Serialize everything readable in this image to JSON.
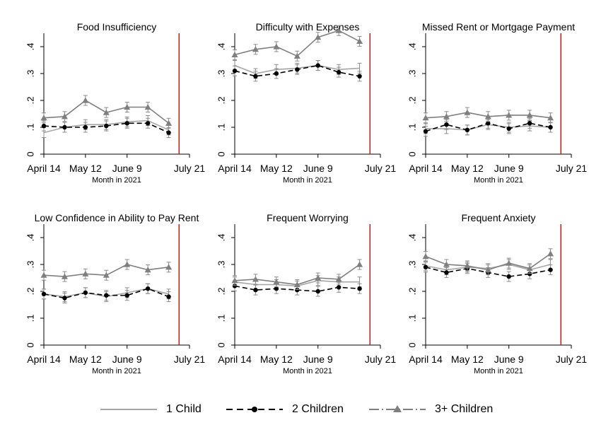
{
  "chart_data": [
    {
      "type": "line",
      "title": "Food Insufficiency",
      "xlabel": "Month in 2021",
      "x_ticks": [
        "April 14",
        "May 12",
        "June 9",
        "July 21"
      ],
      "y_ticks": [
        "0",
        ".1",
        ".2",
        ".3",
        ".4"
      ],
      "ylim": [
        0,
        0.45
      ],
      "policy_line_week": 6.5,
      "series": [
        {
          "name": "1 Child",
          "values": [
            0.08,
            0.1,
            0.11,
            0.11,
            0.12,
            0.125,
            0.09
          ]
        },
        {
          "name": "2 Children",
          "values": [
            0.105,
            0.1,
            0.1,
            0.105,
            0.115,
            0.115,
            0.08
          ]
        },
        {
          "name": "3+ Children",
          "values": [
            0.135,
            0.14,
            0.2,
            0.155,
            0.175,
            0.175,
            0.115
          ]
        }
      ]
    },
    {
      "type": "line",
      "title": "Difficulty with Expenses",
      "xlabel": "Month in 2021",
      "x_ticks": [
        "April 14",
        "May 12",
        "June 9",
        "July 21"
      ],
      "y_ticks": [
        "0",
        ".1",
        ".2",
        ".3",
        ".4"
      ],
      "ylim": [
        0,
        0.45
      ],
      "policy_line_week": 6.5,
      "series": [
        {
          "name": "1 Child",
          "values": [
            0.33,
            0.3,
            0.315,
            0.32,
            0.33,
            0.315,
            0.32
          ]
        },
        {
          "name": "2 Children",
          "values": [
            0.31,
            0.29,
            0.3,
            0.315,
            0.33,
            0.305,
            0.29
          ]
        },
        {
          "name": "3+ Children",
          "values": [
            0.37,
            0.39,
            0.4,
            0.365,
            0.435,
            0.46,
            0.42
          ]
        }
      ]
    },
    {
      "type": "line",
      "title": "Missed Rent or Mortgage Payment",
      "xlabel": "Month in 2021",
      "x_ticks": [
        "April 14",
        "May 12",
        "June 9",
        "July 21"
      ],
      "y_ticks": [
        "0",
        ".1",
        ".2",
        ".3",
        ".4"
      ],
      "ylim": [
        0,
        0.45
      ],
      "policy_line_week": 6.5,
      "series": [
        {
          "name": "1 Child",
          "values": [
            0.095,
            0.095,
            0.09,
            0.11,
            0.1,
            0.105,
            0.1
          ]
        },
        {
          "name": "2 Children",
          "values": [
            0.085,
            0.11,
            0.09,
            0.115,
            0.095,
            0.115,
            0.1
          ]
        },
        {
          "name": "3+ Children",
          "values": [
            0.135,
            0.14,
            0.155,
            0.14,
            0.145,
            0.145,
            0.135
          ]
        }
      ]
    },
    {
      "type": "line",
      "title": "Low Confidence in Ability to Pay Rent",
      "xlabel": "Month in 2021",
      "x_ticks": [
        "April 14",
        "May 12",
        "June 9",
        "July 21"
      ],
      "y_ticks": [
        "0",
        ".1",
        ".2",
        ".3",
        ".4"
      ],
      "ylim": [
        0,
        0.45
      ],
      "policy_line_week": 6.5,
      "series": [
        {
          "name": "1 Child",
          "values": [
            0.19,
            0.18,
            0.195,
            0.18,
            0.195,
            0.21,
            0.19
          ]
        },
        {
          "name": "2 Children",
          "values": [
            0.19,
            0.175,
            0.195,
            0.185,
            0.185,
            0.21,
            0.18
          ]
        },
        {
          "name": "3+ Children",
          "values": [
            0.26,
            0.255,
            0.265,
            0.26,
            0.3,
            0.28,
            0.29
          ]
        }
      ]
    },
    {
      "type": "line",
      "title": "Frequent Worrying",
      "xlabel": "Month in 2021",
      "x_ticks": [
        "April 14",
        "May 12",
        "June 9",
        "July 21"
      ],
      "y_ticks": [
        "0",
        ".1",
        ".2",
        ".3",
        ".4"
      ],
      "ylim": [
        0,
        0.45
      ],
      "policy_line_week": 6.5,
      "series": [
        {
          "name": "1 Child",
          "values": [
            0.235,
            0.225,
            0.225,
            0.22,
            0.24,
            0.235,
            0.235
          ]
        },
        {
          "name": "2 Children",
          "values": [
            0.22,
            0.205,
            0.21,
            0.205,
            0.2,
            0.215,
            0.21
          ]
        },
        {
          "name": "3+ Children",
          "values": [
            0.24,
            0.245,
            0.235,
            0.225,
            0.25,
            0.245,
            0.3
          ]
        }
      ]
    },
    {
      "type": "line",
      "title": "Frequent Anxiety",
      "xlabel": "Month in 2021",
      "x_ticks": [
        "April 14",
        "May 12",
        "June 9",
        "July 21"
      ],
      "y_ticks": [
        "0",
        ".1",
        ".2",
        ".3",
        ".4"
      ],
      "ylim": [
        0,
        0.45
      ],
      "policy_line_week": 6.5,
      "series": [
        {
          "name": "1 Child",
          "values": [
            0.295,
            0.28,
            0.29,
            0.285,
            0.3,
            0.28,
            0.3
          ]
        },
        {
          "name": "2 Children",
          "values": [
            0.29,
            0.27,
            0.285,
            0.27,
            0.255,
            0.265,
            0.28
          ]
        },
        {
          "name": "3+ Children",
          "values": [
            0.33,
            0.3,
            0.295,
            0.28,
            0.305,
            0.285,
            0.34
          ]
        }
      ]
    }
  ],
  "x_tick_weeks": [
    0,
    2,
    4,
    7
  ],
  "week_count": 7,
  "legend": [
    {
      "label": "1 Child"
    },
    {
      "label": "2 Children"
    },
    {
      "label": "3+ Children"
    }
  ],
  "colors": {
    "one_child": "#a6a6a6",
    "two_children": "#000000",
    "three_plus": "#7f7f7f",
    "ci": "#8c8c8c",
    "policy_line": "#cc1f1f",
    "axis": "#000000"
  }
}
